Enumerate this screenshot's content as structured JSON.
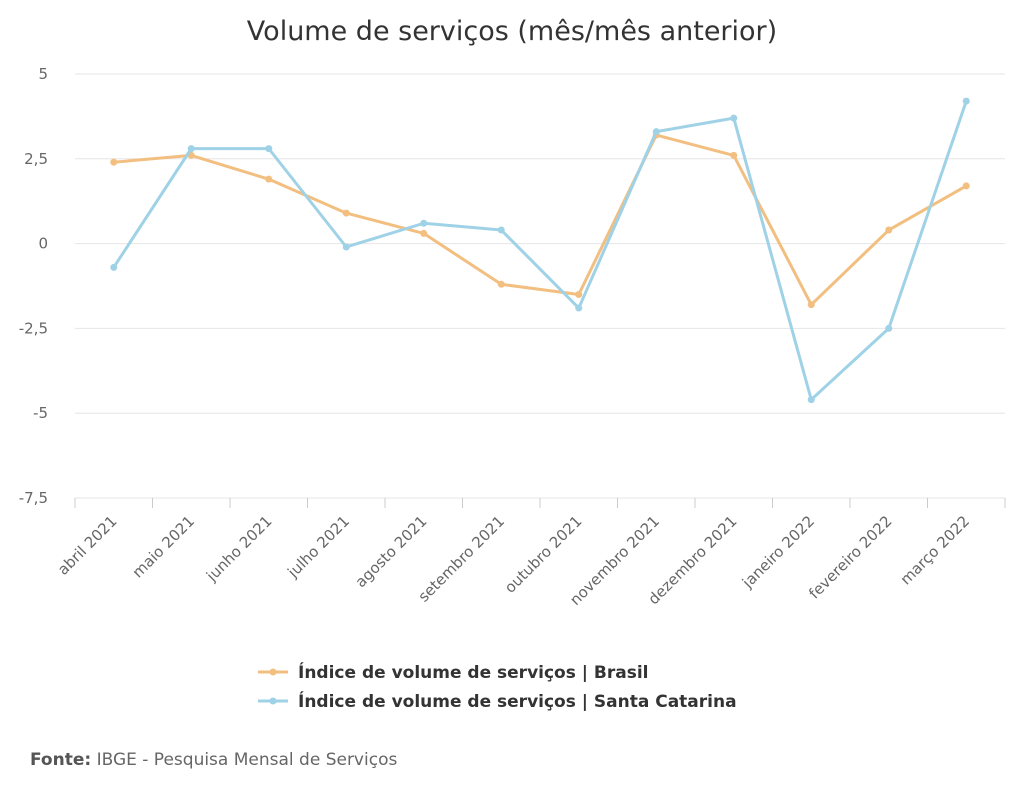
{
  "chart_data": {
    "type": "line",
    "title": "Volume de serviços (mês/mês anterior)",
    "categories": [
      "abril 2021",
      "maio 2021",
      "junho 2021",
      "julho 2021",
      "agosto 2021",
      "setembro 2021",
      "outubro 2021",
      "novembro 2021",
      "dezembro 2021",
      "janeiro 2022",
      "fevereiro 2022",
      "março 2022"
    ],
    "series": [
      {
        "name": "Índice de volume de serviços | Brasil",
        "color": "#f2bf80",
        "values": [
          2.4,
          2.6,
          1.9,
          0.9,
          0.3,
          -1.2,
          -1.5,
          3.2,
          2.6,
          -1.8,
          0.4,
          1.7
        ]
      },
      {
        "name": "Índice de volume de serviços | Santa Catarina",
        "color": "#9fd2e6",
        "values": [
          -0.7,
          2.8,
          2.8,
          -0.1,
          0.6,
          0.4,
          -1.9,
          3.3,
          3.7,
          -4.6,
          -2.5,
          4.2
        ]
      }
    ],
    "ylim": [
      -7.5,
      5
    ],
    "yticks": [
      5,
      2.5,
      0,
      -2.5,
      -5,
      -7.5
    ],
    "ytick_labels": [
      "5",
      "2,5",
      "0",
      "-2,5",
      "-5",
      "-7,5"
    ],
    "grid": true,
    "legend_position": "bottom"
  },
  "source": {
    "label": "Fonte:",
    "text": "IBGE - Pesquisa Mensal de Serviços"
  }
}
